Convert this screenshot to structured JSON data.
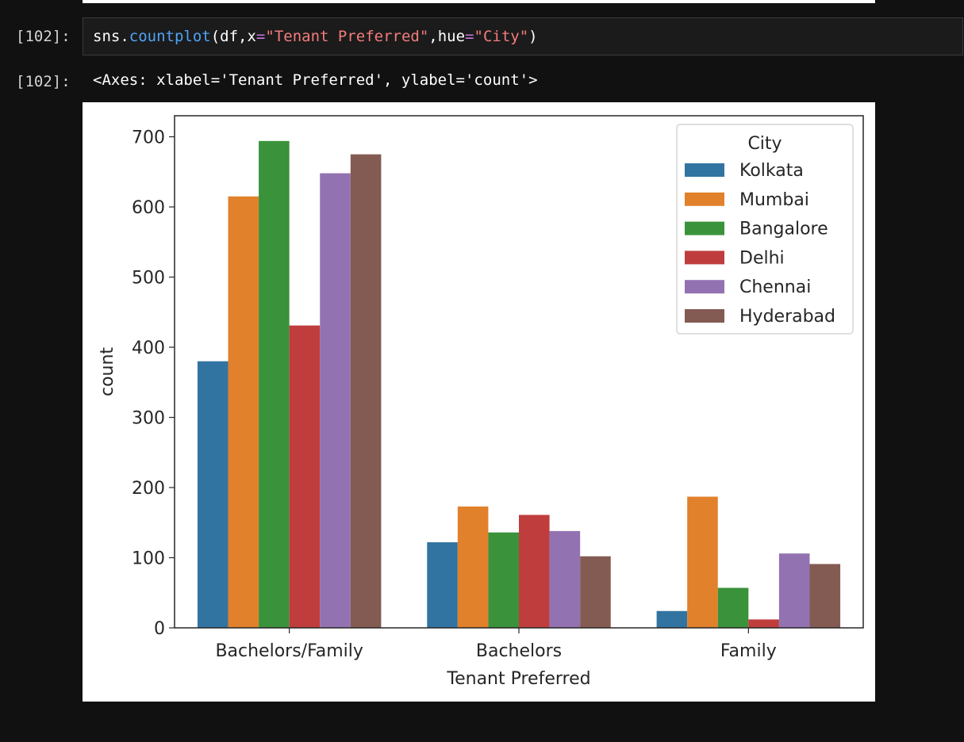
{
  "notebook": {
    "input_prompt": "[102]:",
    "output_prompt": "[102]:",
    "code": {
      "t1": "sns.",
      "t2": "countplot",
      "t3": "(df,x",
      "t4": "=",
      "t5": "\"Tenant Preferred\"",
      "t6": ",hue",
      "t7": "=",
      "t8": "\"City\"",
      "t9": ")"
    },
    "output_text": "<Axes: xlabel='Tenant Preferred', ylabel='count'>",
    "colors": {
      "background": "#111111",
      "code_default": "#ffffff",
      "code_function": "#4fa3f7",
      "code_operator": "#c678dd",
      "code_string": "#f47c7c"
    }
  },
  "chart_data": {
    "type": "bar",
    "title": "",
    "xlabel": "Tenant Preferred",
    "ylabel": "count",
    "ylim": [
      0,
      730
    ],
    "yticks": [
      0,
      100,
      200,
      300,
      400,
      500,
      600,
      700
    ],
    "categories": [
      "Bachelors/Family",
      "Bachelors",
      "Family"
    ],
    "legend": {
      "title": "City",
      "position": "top-right"
    },
    "grid": false,
    "series": [
      {
        "name": "Kolkata",
        "color": "#3274a1",
        "values": [
          380,
          122,
          24
        ]
      },
      {
        "name": "Mumbai",
        "color": "#e1812c",
        "values": [
          615,
          173,
          187
        ]
      },
      {
        "name": "Bangalore",
        "color": "#3a923a",
        "values": [
          694,
          136,
          57
        ]
      },
      {
        "name": "Delhi",
        "color": "#c03d3e",
        "values": [
          431,
          161,
          12
        ]
      },
      {
        "name": "Chennai",
        "color": "#9372b2",
        "values": [
          648,
          138,
          106
        ]
      },
      {
        "name": "Hyderabad",
        "color": "#845b53",
        "values": [
          675,
          102,
          91
        ]
      }
    ]
  }
}
